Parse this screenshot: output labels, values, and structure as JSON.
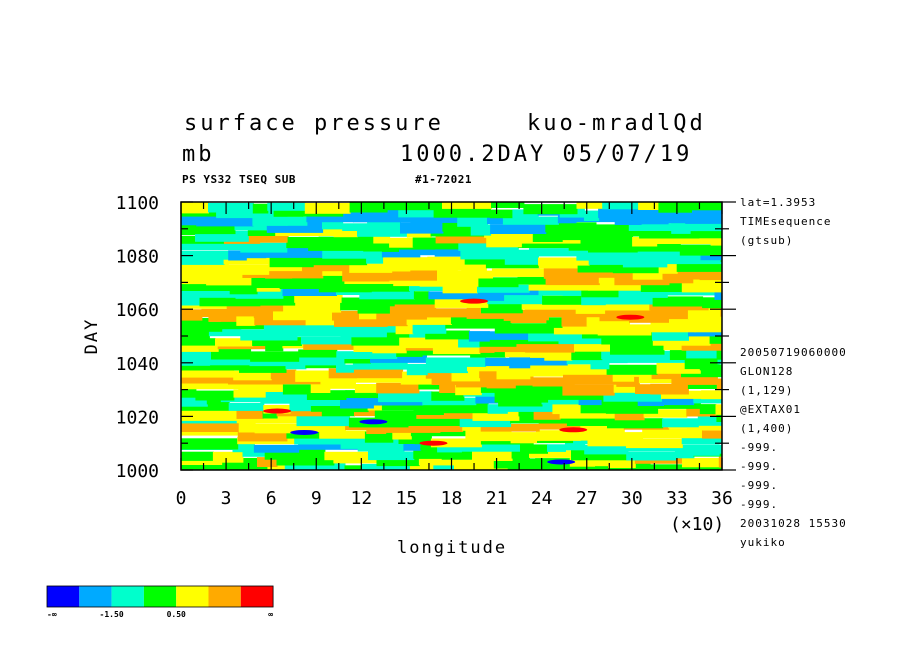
{
  "header": {
    "title_left": "surface pressure",
    "title_right": "kuo-mradlQd",
    "unit": "mb",
    "title_info": "1000.2DAY 05/07/19",
    "sub_left": "PS YS32 TSEQ SUB",
    "sub_right": "#1-72021"
  },
  "side_info": {
    "top": [
      "lat=1.3953",
      "TIMEsequence",
      "(gtsub)"
    ],
    "bottom": [
      "20050719060000",
      "GLON128",
      "(1,129)",
      "@EXTAX01",
      "(1,400)",
      "-999.",
      "-999.",
      "-999.",
      "-999.",
      "20031028  15530",
      "yukiko"
    ]
  },
  "colors": {
    "levels": [
      "#0000ff",
      "#00aaff",
      "#00ffcc",
      "#00ff00",
      "#ffff00",
      "#ffaa00",
      "#ff0000"
    ],
    "background": "#ffffff"
  },
  "colorbar": {
    "labels": [
      "-∞",
      "-1.50",
      "0.50",
      "∞"
    ]
  },
  "chart_data": {
    "type": "heatmap",
    "title": "surface pressure",
    "xlabel": "longitude",
    "ylabel": "DAY",
    "xscale_label": "(×10)",
    "xlim": [
      0,
      36
    ],
    "ylim": [
      1000,
      1100
    ],
    "xticks": [
      0,
      3,
      6,
      9,
      12,
      15,
      18,
      21,
      24,
      27,
      30,
      33,
      36
    ],
    "yticks": [
      1000,
      1020,
      1040,
      1060,
      1080,
      1100
    ],
    "field_description": "horizontal banded anomaly field in 7 shaded levels",
    "band_levels_from_bottom": [
      3,
      4,
      3,
      2,
      3,
      4,
      5,
      3,
      4,
      3,
      2,
      3,
      4,
      5,
      4,
      3,
      2,
      3,
      4,
      3,
      2,
      3,
      4,
      5,
      4,
      3,
      2,
      3,
      4,
      5,
      4,
      3,
      2,
      3,
      4,
      3,
      2,
      1,
      2,
      3
    ],
    "hotspots": [
      {
        "x": 6.4,
        "y": 1022,
        "level": 6
      },
      {
        "x": 8.2,
        "y": 1014,
        "level": 0
      },
      {
        "x": 12.8,
        "y": 1018,
        "level": 0
      },
      {
        "x": 19.5,
        "y": 1063,
        "level": 6
      },
      {
        "x": 29.9,
        "y": 1057,
        "level": 6
      },
      {
        "x": 16.8,
        "y": 1010,
        "level": 6
      },
      {
        "x": 25.3,
        "y": 1003,
        "level": 0
      },
      {
        "x": 26.1,
        "y": 1015,
        "level": 6
      }
    ]
  }
}
